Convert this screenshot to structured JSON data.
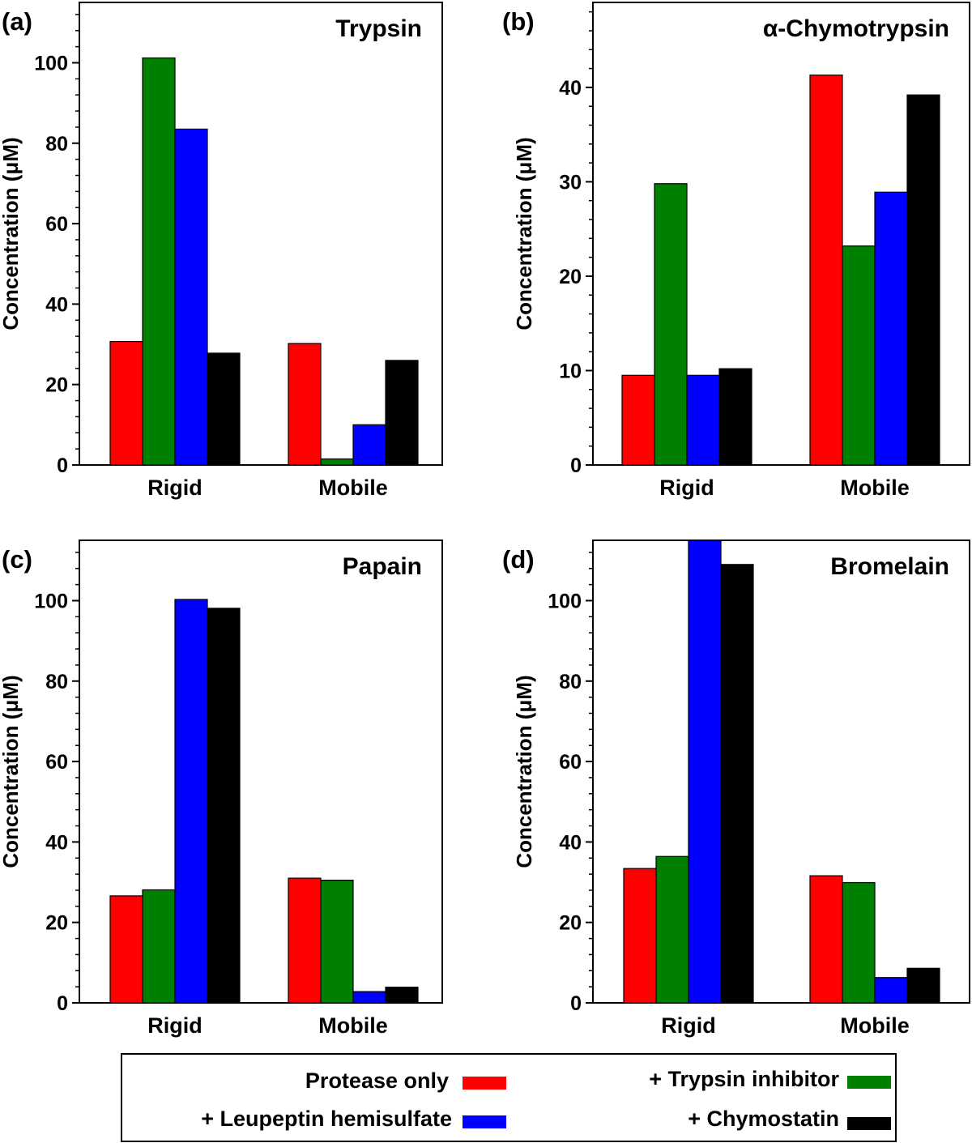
{
  "legend": {
    "items": [
      {
        "label": "Protease only",
        "color": "#ff0000"
      },
      {
        "label": "+ Trypsin inhibitor",
        "color": "#008000"
      },
      {
        "label": "+ Leupeptin hemisulfate",
        "color": "#0000ff"
      },
      {
        "label": "+ Chymostatin",
        "color": "#000000"
      }
    ]
  },
  "chart_data": [
    {
      "type": "bar",
      "panel": "(a)",
      "title": "Trypsin",
      "ylabel": "Concentration (μM)",
      "ylim": [
        0,
        115
      ],
      "yticks": [
        0,
        20,
        40,
        60,
        80,
        100
      ],
      "categories": [
        "Rigid",
        "Mobile"
      ],
      "series": [
        {
          "name": "Protease only",
          "values": [
            30.7,
            30.2
          ]
        },
        {
          "name": "+ Trypsin inhibitor",
          "values": [
            101.2,
            1.5
          ]
        },
        {
          "name": "+ Leupeptin hemisulfate",
          "values": [
            83.5,
            10.0
          ]
        },
        {
          "name": "+ Chymostatin",
          "values": [
            27.8,
            26.0
          ]
        }
      ]
    },
    {
      "type": "bar",
      "panel": "(b)",
      "title": "α-Chymotrypsin",
      "ylabel": "Concentration (μM)",
      "ylim": [
        0,
        49
      ],
      "yticks": [
        0,
        10,
        20,
        30,
        40
      ],
      "categories": [
        "Rigid",
        "Mobile"
      ],
      "series": [
        {
          "name": "Protease only",
          "values": [
            9.5,
            41.3
          ]
        },
        {
          "name": "+ Trypsin inhibitor",
          "values": [
            29.8,
            23.2
          ]
        },
        {
          "name": "+ Leupeptin hemisulfate",
          "values": [
            9.5,
            28.9
          ]
        },
        {
          "name": "+ Chymostatin",
          "values": [
            10.2,
            39.2
          ]
        }
      ]
    },
    {
      "type": "bar",
      "panel": "(c)",
      "title": "Papain",
      "ylabel": "Concentration (μM)",
      "ylim": [
        0,
        115
      ],
      "yticks": [
        0,
        20,
        40,
        60,
        80,
        100
      ],
      "categories": [
        "Rigid",
        "Mobile"
      ],
      "series": [
        {
          "name": "Protease only",
          "values": [
            26.6,
            31.0
          ]
        },
        {
          "name": "+ Trypsin inhibitor",
          "values": [
            28.1,
            30.5
          ]
        },
        {
          "name": "+ Leupeptin hemisulfate",
          "values": [
            100.3,
            2.8
          ]
        },
        {
          "name": "+ Chymostatin",
          "values": [
            98.1,
            3.9
          ]
        }
      ]
    },
    {
      "type": "bar",
      "panel": "(d)",
      "title": "Bromelain",
      "ylabel": "Concentration (μM)",
      "ylim": [
        0,
        115
      ],
      "yticks": [
        0,
        20,
        40,
        60,
        80,
        100
      ],
      "categories": [
        "Rigid",
        "Mobile"
      ],
      "series": [
        {
          "name": "Protease only",
          "values": [
            33.4,
            31.6
          ]
        },
        {
          "name": "+ Trypsin inhibitor",
          "values": [
            36.4,
            29.9
          ]
        },
        {
          "name": "+ Leupeptin hemisulfate",
          "values": [
            115.0,
            6.3
          ]
        },
        {
          "name": "+ Chymostatin",
          "values": [
            109.0,
            8.6
          ]
        }
      ]
    }
  ]
}
